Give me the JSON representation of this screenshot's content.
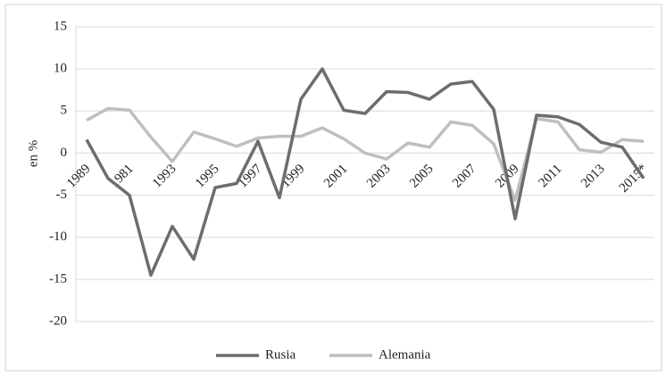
{
  "chart_data": {
    "type": "line",
    "y_label": "en %",
    "categories": [
      "1989",
      null,
      "1981",
      null,
      "1993",
      null,
      "1995",
      null,
      "1997",
      null,
      "1999",
      null,
      "2001",
      null,
      "2003",
      null,
      "2005",
      null,
      "2007",
      null,
      "2009",
      null,
      "2011",
      null,
      "2013",
      null,
      "2015*"
    ],
    "series": [
      {
        "name": "Rusia",
        "color": "#6d6d6d",
        "values": [
          1.6,
          -3,
          -5,
          -14.5,
          -8.7,
          -12.6,
          -4.1,
          -3.6,
          1.4,
          -5.3,
          6.4,
          10,
          5.1,
          4.7,
          7.3,
          7.2,
          6.4,
          8.2,
          8.5,
          5.2,
          -7.8,
          4.5,
          4.3,
          3.4,
          1.3,
          0.7,
          -3
        ]
      },
      {
        "name": "Alemania",
        "color": "#bfbfbf",
        "values": [
          3.9,
          5.3,
          5.1,
          1.9,
          -1,
          2.5,
          1.7,
          0.8,
          1.8,
          2,
          2,
          3,
          1.7,
          0,
          -0.7,
          1.2,
          0.7,
          3.7,
          3.3,
          1.1,
          -5.6,
          4.1,
          3.7,
          0.4,
          0.1,
          1.6,
          1.4
        ]
      }
    ],
    "ylim": [
      -20,
      15
    ],
    "yticks": [
      -20,
      -15,
      -10,
      -5,
      0,
      5,
      10,
      15
    ],
    "grid": true,
    "legend": "bottom"
  }
}
